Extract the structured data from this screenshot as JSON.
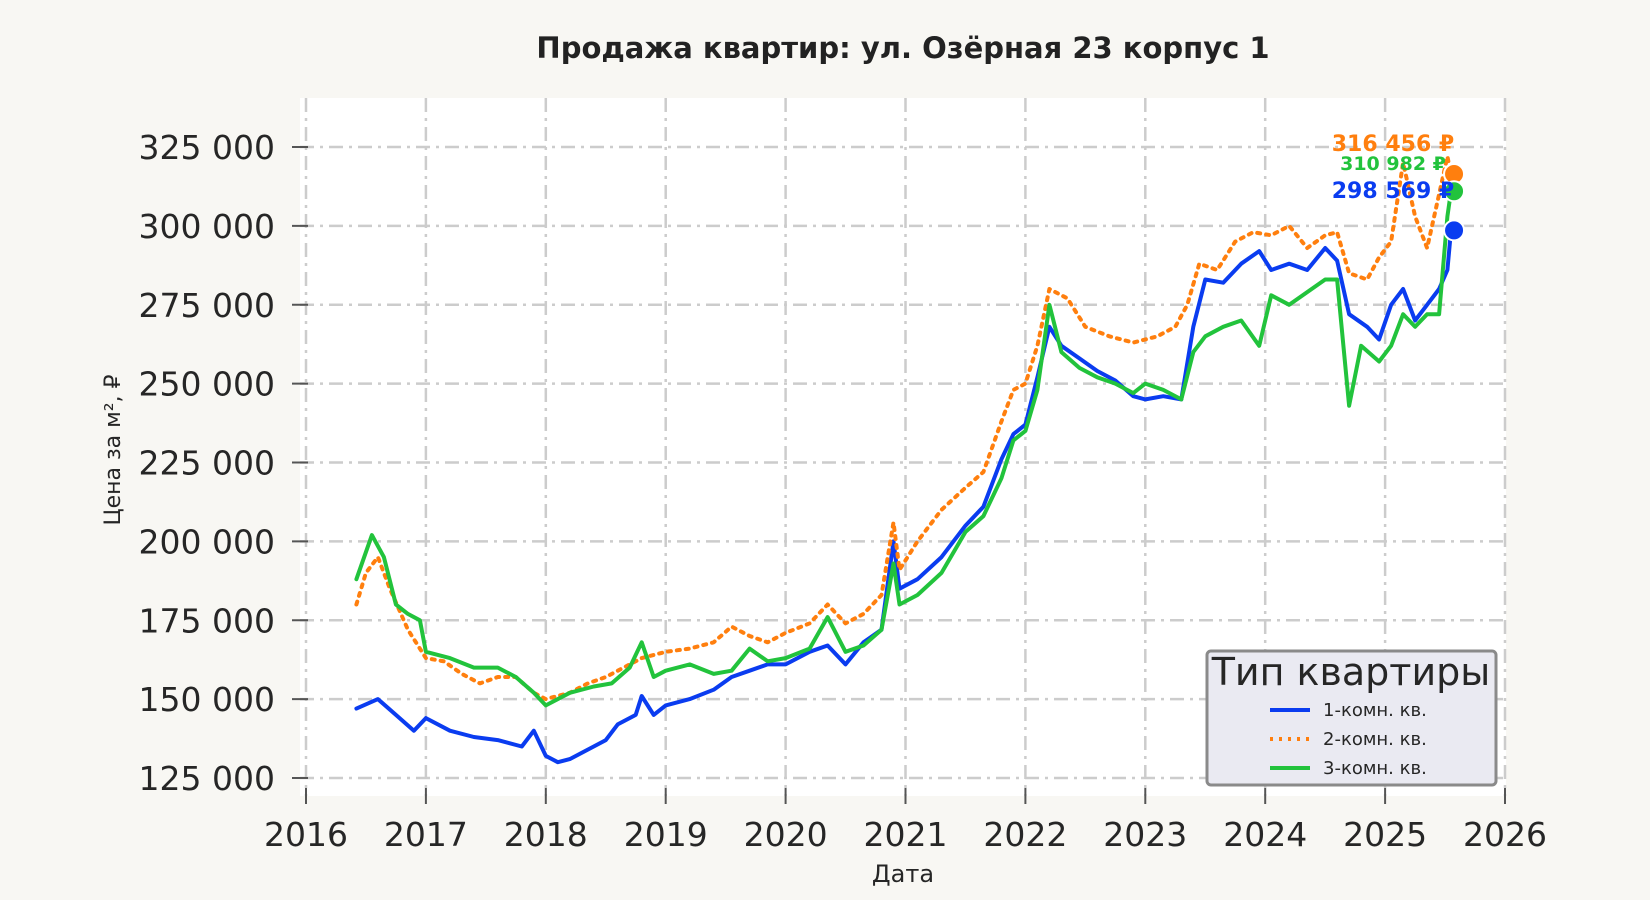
{
  "chart_data": {
    "type": "line",
    "title": "Продажа квартир: ул. Озёрная 23 корпус 1",
    "xlabel": "Дата",
    "ylabel": "Цена за м², ₽",
    "xlim": [
      2016,
      2026
    ],
    "ylim": [
      120000,
      340000
    ],
    "x_ticks": [
      "2016",
      "2017",
      "2018",
      "2019",
      "2020",
      "2021",
      "2022",
      "2023",
      "2024",
      "2025",
      "2026"
    ],
    "y_ticks": [
      "125 000",
      "150 000",
      "175 000",
      "200 000",
      "225 000",
      "250 000",
      "275 000",
      "300 000",
      "325 000"
    ],
    "grid": true,
    "legend": {
      "title": "Тип квартиры",
      "placement": "bottom-right"
    },
    "series": [
      {
        "name": "1-комн. кв.",
        "color": "#0a3cf0",
        "style": "solid",
        "end_label": "298 569 ₽",
        "end_value": 298569,
        "points": [
          [
            2016.42,
            147000
          ],
          [
            2016.6,
            150000
          ],
          [
            2016.75,
            145000
          ],
          [
            2016.9,
            140000
          ],
          [
            2017.0,
            144000
          ],
          [
            2017.2,
            140000
          ],
          [
            2017.4,
            138000
          ],
          [
            2017.6,
            137000
          ],
          [
            2017.8,
            135000
          ],
          [
            2017.9,
            140000
          ],
          [
            2018.0,
            132000
          ],
          [
            2018.1,
            130000
          ],
          [
            2018.2,
            131000
          ],
          [
            2018.35,
            134000
          ],
          [
            2018.5,
            137000
          ],
          [
            2018.6,
            142000
          ],
          [
            2018.75,
            145000
          ],
          [
            2018.8,
            151000
          ],
          [
            2018.9,
            145000
          ],
          [
            2019.0,
            148000
          ],
          [
            2019.2,
            150000
          ],
          [
            2019.4,
            153000
          ],
          [
            2019.55,
            157000
          ],
          [
            2019.7,
            159000
          ],
          [
            2019.85,
            161000
          ],
          [
            2020.0,
            161000
          ],
          [
            2020.2,
            165000
          ],
          [
            2020.35,
            167000
          ],
          [
            2020.5,
            161000
          ],
          [
            2020.65,
            168000
          ],
          [
            2020.8,
            172000
          ],
          [
            2020.9,
            200000
          ],
          [
            2020.95,
            185000
          ],
          [
            2021.1,
            188000
          ],
          [
            2021.3,
            195000
          ],
          [
            2021.5,
            205000
          ],
          [
            2021.65,
            211000
          ],
          [
            2021.8,
            226000
          ],
          [
            2021.9,
            234000
          ],
          [
            2022.0,
            237000
          ],
          [
            2022.1,
            252000
          ],
          [
            2022.2,
            268000
          ],
          [
            2022.3,
            262000
          ],
          [
            2022.45,
            258000
          ],
          [
            2022.6,
            254000
          ],
          [
            2022.75,
            251000
          ],
          [
            2022.9,
            246000
          ],
          [
            2023.0,
            245000
          ],
          [
            2023.15,
            246000
          ],
          [
            2023.3,
            245000
          ],
          [
            2023.4,
            268000
          ],
          [
            2023.5,
            283000
          ],
          [
            2023.65,
            282000
          ],
          [
            2023.8,
            288000
          ],
          [
            2023.95,
            292000
          ],
          [
            2024.05,
            286000
          ],
          [
            2024.2,
            288000
          ],
          [
            2024.35,
            286000
          ],
          [
            2024.5,
            293000
          ],
          [
            2024.6,
            289000
          ],
          [
            2024.7,
            272000
          ],
          [
            2024.85,
            268000
          ],
          [
            2024.95,
            264000
          ],
          [
            2025.05,
            275000
          ],
          [
            2025.15,
            280000
          ],
          [
            2025.25,
            270000
          ],
          [
            2025.35,
            275000
          ],
          [
            2025.45,
            280000
          ],
          [
            2025.52,
            286000
          ],
          [
            2025.55,
            298569
          ]
        ]
      },
      {
        "name": "2-комн. кв.",
        "color": "#ff7f0e",
        "style": "dotted",
        "end_label": "316 456 ₽",
        "end_value": 316456,
        "points": [
          [
            2016.42,
            180000
          ],
          [
            2016.5,
            190000
          ],
          [
            2016.6,
            195000
          ],
          [
            2016.7,
            185000
          ],
          [
            2016.85,
            172000
          ],
          [
            2017.0,
            163000
          ],
          [
            2017.15,
            162000
          ],
          [
            2017.3,
            158000
          ],
          [
            2017.45,
            155000
          ],
          [
            2017.6,
            157000
          ],
          [
            2017.75,
            157000
          ],
          [
            2017.9,
            152000
          ],
          [
            2018.0,
            150000
          ],
          [
            2018.2,
            152000
          ],
          [
            2018.35,
            155000
          ],
          [
            2018.5,
            157000
          ],
          [
            2018.65,
            160000
          ],
          [
            2018.8,
            163000
          ],
          [
            2019.0,
            165000
          ],
          [
            2019.2,
            166000
          ],
          [
            2019.4,
            168000
          ],
          [
            2019.55,
            173000
          ],
          [
            2019.7,
            170000
          ],
          [
            2019.85,
            168000
          ],
          [
            2020.0,
            171000
          ],
          [
            2020.2,
            174000
          ],
          [
            2020.35,
            180000
          ],
          [
            2020.5,
            174000
          ],
          [
            2020.65,
            177000
          ],
          [
            2020.8,
            183000
          ],
          [
            2020.9,
            206000
          ],
          [
            2020.95,
            191000
          ],
          [
            2021.1,
            200000
          ],
          [
            2021.3,
            210000
          ],
          [
            2021.5,
            217000
          ],
          [
            2021.65,
            222000
          ],
          [
            2021.8,
            238000
          ],
          [
            2021.9,
            248000
          ],
          [
            2022.0,
            250000
          ],
          [
            2022.1,
            262000
          ],
          [
            2022.2,
            280000
          ],
          [
            2022.35,
            277000
          ],
          [
            2022.5,
            268000
          ],
          [
            2022.7,
            265000
          ],
          [
            2022.9,
            263000
          ],
          [
            2023.1,
            265000
          ],
          [
            2023.25,
            268000
          ],
          [
            2023.35,
            275000
          ],
          [
            2023.45,
            288000
          ],
          [
            2023.6,
            286000
          ],
          [
            2023.75,
            295000
          ],
          [
            2023.9,
            298000
          ],
          [
            2024.05,
            297000
          ],
          [
            2024.2,
            300000
          ],
          [
            2024.35,
            293000
          ],
          [
            2024.5,
            297000
          ],
          [
            2024.6,
            298000
          ],
          [
            2024.7,
            285000
          ],
          [
            2024.85,
            283000
          ],
          [
            2024.95,
            290000
          ],
          [
            2025.05,
            295000
          ],
          [
            2025.15,
            320000
          ],
          [
            2025.25,
            303000
          ],
          [
            2025.35,
            293000
          ],
          [
            2025.45,
            310000
          ],
          [
            2025.52,
            322000
          ],
          [
            2025.55,
            316456
          ]
        ]
      },
      {
        "name": "3-комн. кв.",
        "color": "#22c33c",
        "style": "solid",
        "end_label": "310 982 ₽",
        "end_value": 310982,
        "points": [
          [
            2016.42,
            188000
          ],
          [
            2016.55,
            202000
          ],
          [
            2016.65,
            195000
          ],
          [
            2016.75,
            180000
          ],
          [
            2016.85,
            177000
          ],
          [
            2016.95,
            175000
          ],
          [
            2017.0,
            165000
          ],
          [
            2017.2,
            163000
          ],
          [
            2017.4,
            160000
          ],
          [
            2017.6,
            160000
          ],
          [
            2017.75,
            157000
          ],
          [
            2017.9,
            152000
          ],
          [
            2018.0,
            148000
          ],
          [
            2018.2,
            152000
          ],
          [
            2018.4,
            154000
          ],
          [
            2018.55,
            155000
          ],
          [
            2018.7,
            160000
          ],
          [
            2018.8,
            168000
          ],
          [
            2018.9,
            157000
          ],
          [
            2019.0,
            159000
          ],
          [
            2019.2,
            161000
          ],
          [
            2019.4,
            158000
          ],
          [
            2019.55,
            159000
          ],
          [
            2019.7,
            166000
          ],
          [
            2019.85,
            162000
          ],
          [
            2020.0,
            163000
          ],
          [
            2020.2,
            166000
          ],
          [
            2020.35,
            176000
          ],
          [
            2020.5,
            165000
          ],
          [
            2020.65,
            167000
          ],
          [
            2020.8,
            172000
          ],
          [
            2020.9,
            193000
          ],
          [
            2020.95,
            180000
          ],
          [
            2021.1,
            183000
          ],
          [
            2021.3,
            190000
          ],
          [
            2021.5,
            203000
          ],
          [
            2021.65,
            208000
          ],
          [
            2021.8,
            220000
          ],
          [
            2021.9,
            232000
          ],
          [
            2022.0,
            235000
          ],
          [
            2022.1,
            248000
          ],
          [
            2022.2,
            275000
          ],
          [
            2022.3,
            260000
          ],
          [
            2022.45,
            255000
          ],
          [
            2022.6,
            252000
          ],
          [
            2022.75,
            250000
          ],
          [
            2022.9,
            247000
          ],
          [
            2023.0,
            250000
          ],
          [
            2023.15,
            248000
          ],
          [
            2023.3,
            245000
          ],
          [
            2023.4,
            260000
          ],
          [
            2023.5,
            265000
          ],
          [
            2023.65,
            268000
          ],
          [
            2023.8,
            270000
          ],
          [
            2023.95,
            262000
          ],
          [
            2024.05,
            278000
          ],
          [
            2024.2,
            275000
          ],
          [
            2024.35,
            279000
          ],
          [
            2024.5,
            283000
          ],
          [
            2024.6,
            283000
          ],
          [
            2024.7,
            243000
          ],
          [
            2024.8,
            262000
          ],
          [
            2024.95,
            257000
          ],
          [
            2025.05,
            262000
          ],
          [
            2025.15,
            272000
          ],
          [
            2025.25,
            268000
          ],
          [
            2025.35,
            272000
          ],
          [
            2025.45,
            272000
          ],
          [
            2025.52,
            303000
          ],
          [
            2025.55,
            310982
          ]
        ]
      }
    ]
  }
}
